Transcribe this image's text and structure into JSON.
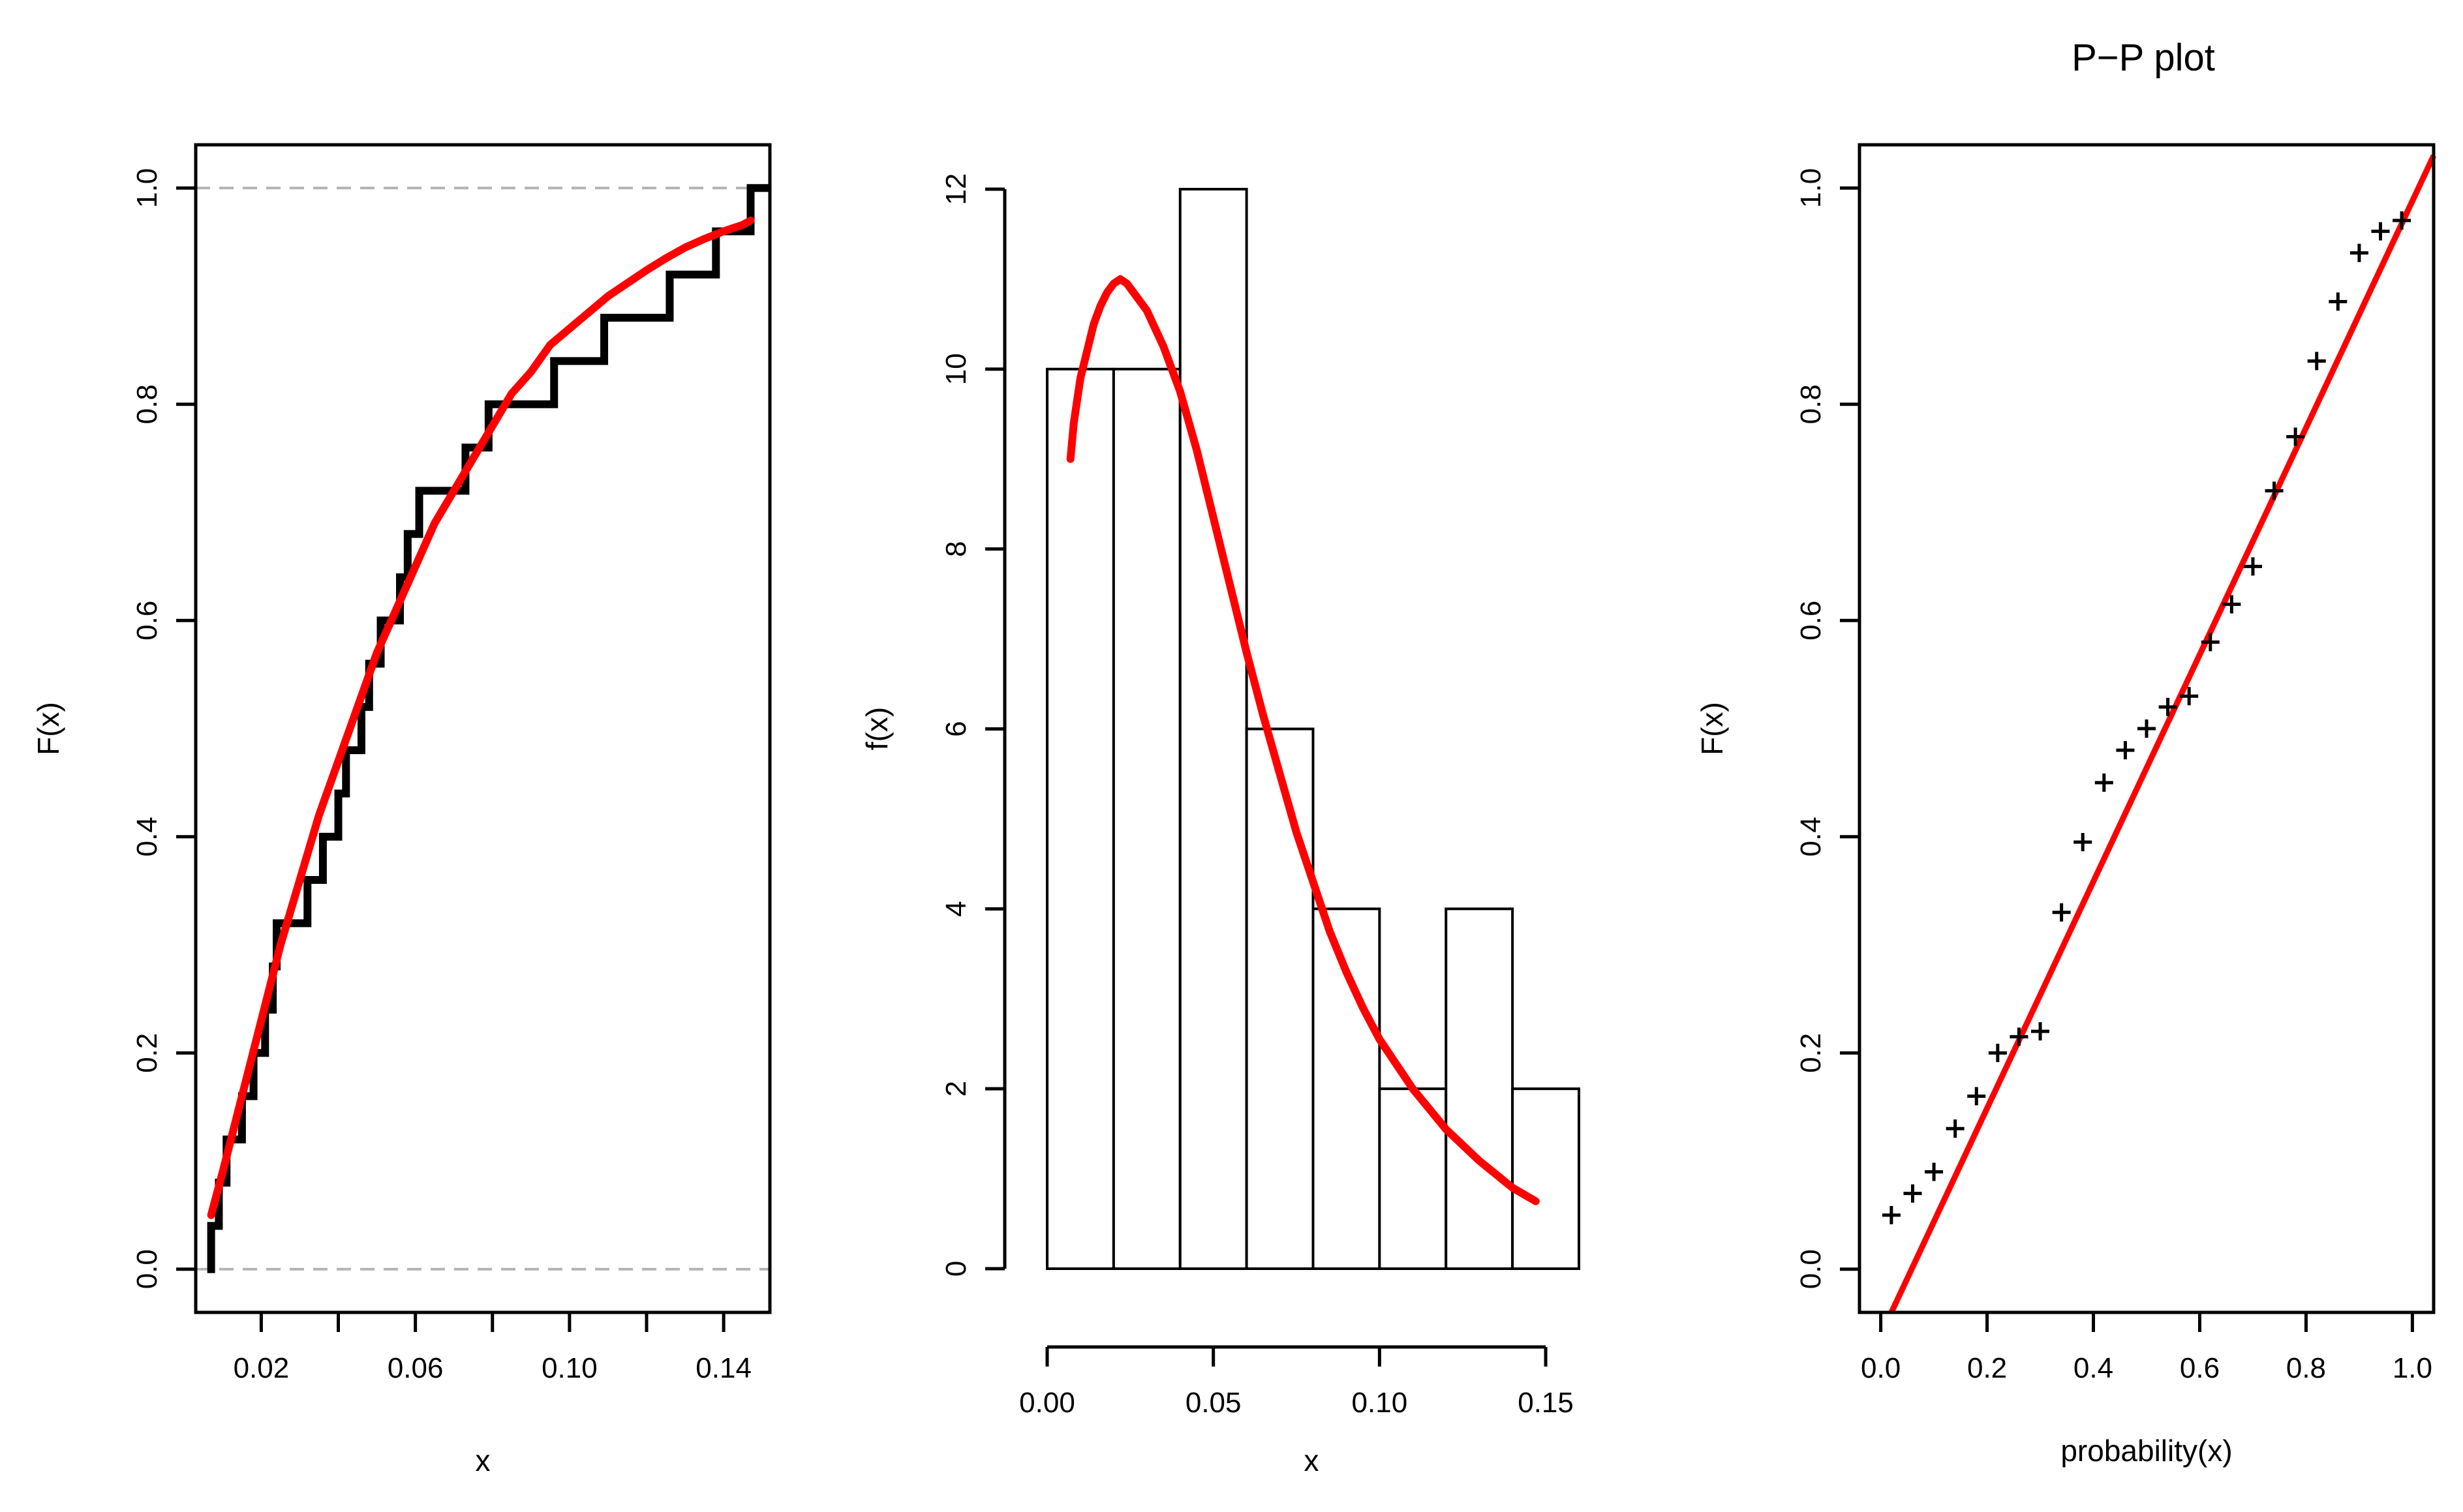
{
  "chart_data": [
    {
      "type": "line",
      "subtype": "empirical-cdf-with-fitted-cdf",
      "title": "",
      "xlabel": "x",
      "ylabel": "F(x)",
      "xlim": [
        0.003,
        0.152
      ],
      "ylim": [
        -0.04,
        1.04
      ],
      "x_ticks": [
        0.02,
        0.06,
        0.1,
        0.14
      ],
      "x_tick_labels": [
        "0.02",
        "0.06",
        "0.10",
        "0.14"
      ],
      "y_ticks": [
        0.0,
        0.2,
        0.4,
        0.6,
        0.8,
        1.0
      ],
      "y_tick_labels": [
        "0.0",
        "0.2",
        "0.4",
        "0.6",
        "0.8",
        "1.0"
      ],
      "reference_lines": [
        0.0,
        1.0
      ],
      "series": [
        {
          "role": "empirical-step",
          "color": "#000000",
          "x": [
            0.007,
            0.009,
            0.011,
            0.013,
            0.015,
            0.018,
            0.02,
            0.021,
            0.023,
            0.024,
            0.032,
            0.034,
            0.036,
            0.037,
            0.04,
            0.042,
            0.044,
            0.046,
            0.048,
            0.049,
            0.051,
            0.056,
            0.058,
            0.061,
            0.066,
            0.073,
            0.079,
            0.083,
            0.092,
            0.096,
            0.108,
            0.109,
            0.126,
            0.138,
            0.141,
            0.147
          ],
          "y": [
            0.04,
            0.08,
            0.12,
            0.12,
            0.16,
            0.2,
            0.2,
            0.24,
            0.28,
            0.32,
            0.36,
            0.36,
            0.4,
            0.4,
            0.44,
            0.48,
            0.48,
            0.52,
            0.56,
            0.56,
            0.6,
            0.64,
            0.68,
            0.72,
            0.72,
            0.76,
            0.8,
            0.8,
            0.8,
            0.84,
            0.84,
            0.88,
            0.92,
            0.96,
            0.96,
            1.0
          ]
        },
        {
          "role": "fitted-cdf",
          "color": "#ff0000",
          "x": [
            0.007,
            0.01,
            0.015,
            0.02,
            0.025,
            0.03,
            0.035,
            0.04,
            0.045,
            0.05,
            0.055,
            0.06,
            0.065,
            0.07,
            0.075,
            0.08,
            0.085,
            0.09,
            0.095,
            0.1,
            0.105,
            0.11,
            0.115,
            0.12,
            0.125,
            0.13,
            0.135,
            0.14,
            0.145,
            0.147
          ],
          "y": [
            0.05,
            0.09,
            0.16,
            0.23,
            0.3,
            0.36,
            0.42,
            0.47,
            0.52,
            0.57,
            0.61,
            0.65,
            0.69,
            0.72,
            0.75,
            0.78,
            0.81,
            0.83,
            0.855,
            0.87,
            0.885,
            0.9,
            0.912,
            0.924,
            0.935,
            0.945,
            0.953,
            0.96,
            0.966,
            0.97
          ]
        }
      ]
    },
    {
      "type": "bar",
      "subtype": "histogram-with-fitted-density",
      "title": "",
      "xlabel": "x",
      "ylabel": "f(x)",
      "xlim": [
        0.0,
        0.16
      ],
      "ylim": [
        0,
        12
      ],
      "x_ticks": [
        0.0,
        0.05,
        0.1,
        0.15
      ],
      "x_tick_labels": [
        "0.00",
        "0.05",
        "0.10",
        "0.15"
      ],
      "y_ticks": [
        0,
        2,
        4,
        6,
        8,
        10,
        12
      ],
      "y_tick_labels": [
        "0",
        "2",
        "4",
        "6",
        "8",
        "10",
        "12"
      ],
      "bin_edges": [
        0.0,
        0.02,
        0.04,
        0.06,
        0.08,
        0.1,
        0.12,
        0.14,
        0.16
      ],
      "values": [
        10,
        10,
        12,
        6,
        4,
        2,
        4,
        2
      ],
      "series": [
        {
          "role": "fitted-density",
          "color": "#ff0000",
          "x": [
            0.007,
            0.008,
            0.01,
            0.012,
            0.014,
            0.016,
            0.018,
            0.02,
            0.022,
            0.024,
            0.026,
            0.03,
            0.035,
            0.04,
            0.045,
            0.05,
            0.055,
            0.06,
            0.065,
            0.07,
            0.075,
            0.08,
            0.085,
            0.09,
            0.095,
            0.1,
            0.11,
            0.12,
            0.13,
            0.14,
            0.147
          ],
          "y": [
            9.0,
            9.4,
            9.9,
            10.2,
            10.5,
            10.7,
            10.85,
            10.95,
            11.0,
            10.95,
            10.85,
            10.65,
            10.25,
            9.75,
            9.1,
            8.35,
            7.6,
            6.85,
            6.15,
            5.5,
            4.85,
            4.3,
            3.75,
            3.3,
            2.9,
            2.55,
            2.0,
            1.55,
            1.2,
            0.9,
            0.75
          ]
        }
      ]
    },
    {
      "type": "scatter",
      "subtype": "pp-plot",
      "title": "P−P plot",
      "xlabel": "probability(x)",
      "ylabel": "F(x)",
      "xlim": [
        -0.04,
        1.04
      ],
      "ylim": [
        -0.04,
        1.04
      ],
      "x_ticks": [
        0.0,
        0.2,
        0.4,
        0.6,
        0.8,
        1.0
      ],
      "x_tick_labels": [
        "0.0",
        "0.2",
        "0.4",
        "0.6",
        "0.8",
        "1.0"
      ],
      "y_ticks": [
        0.0,
        0.2,
        0.4,
        0.6,
        0.8,
        1.0
      ],
      "y_tick_labels": [
        "0.0",
        "0.2",
        "0.4",
        "0.6",
        "0.8",
        "1.0"
      ],
      "points": {
        "color": "#000000",
        "marker": "plus",
        "x": [
          0.02,
          0.06,
          0.1,
          0.14,
          0.18,
          0.22,
          0.26,
          0.3,
          0.34,
          0.38,
          0.42,
          0.46,
          0.5,
          0.54,
          0.58,
          0.62,
          0.66,
          0.7,
          0.74,
          0.78,
          0.82,
          0.86,
          0.9,
          0.94,
          0.98
        ],
        "y": [
          0.05,
          0.07,
          0.09,
          0.13,
          0.16,
          0.2,
          0.215,
          0.22,
          0.33,
          0.395,
          0.45,
          0.48,
          0.5,
          0.52,
          0.53,
          0.58,
          0.615,
          0.65,
          0.72,
          0.77,
          0.84,
          0.895,
          0.94,
          0.96,
          0.97
        ]
      },
      "reference_line": {
        "color": "#ff0000",
        "x": [
          0.02,
          1.04
        ],
        "y": [
          -0.04,
          1.03
        ]
      }
    }
  ]
}
